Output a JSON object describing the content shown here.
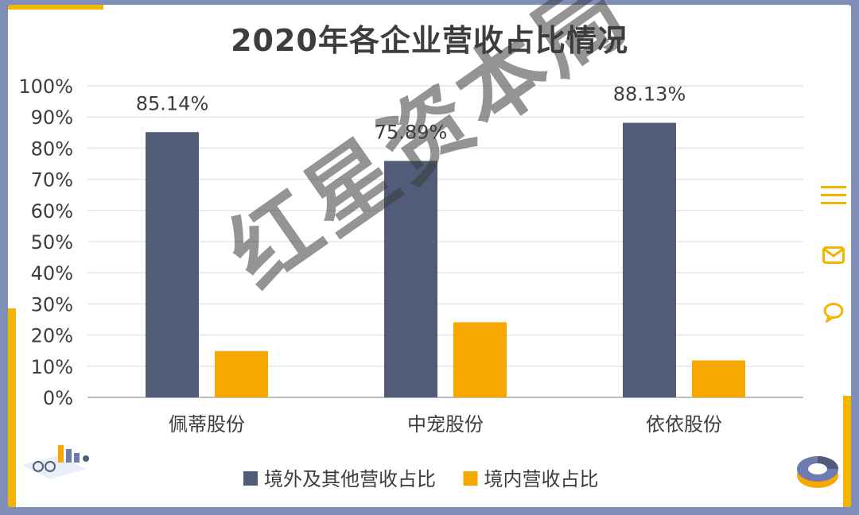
{
  "chart_data": {
    "type": "bar",
    "title": "2020年各企业营收占比情况",
    "categories": [
      "佩蒂股份",
      "中宠股份",
      "依依股份"
    ],
    "series": [
      {
        "name": "境外及其他营收占比",
        "values": [
          85.14,
          75.89,
          88.13
        ],
        "color": "#515c78"
      },
      {
        "name": "境内营收占比",
        "values": [
          14.86,
          24.11,
          11.87
        ],
        "color": "#f7a800"
      }
    ],
    "data_labels": [
      "85.14%",
      "75.89%",
      "88.13%"
    ],
    "yticks": [
      "0%",
      "10%",
      "20%",
      "30%",
      "40%",
      "50%",
      "60%",
      "70%",
      "80%",
      "90%",
      "100%"
    ],
    "ylim": [
      0,
      100
    ],
    "grid": true,
    "legend_position": "bottom"
  },
  "watermark": "红星资本局",
  "icons": [
    "menu-icon",
    "mail-icon",
    "chat-icon"
  ]
}
